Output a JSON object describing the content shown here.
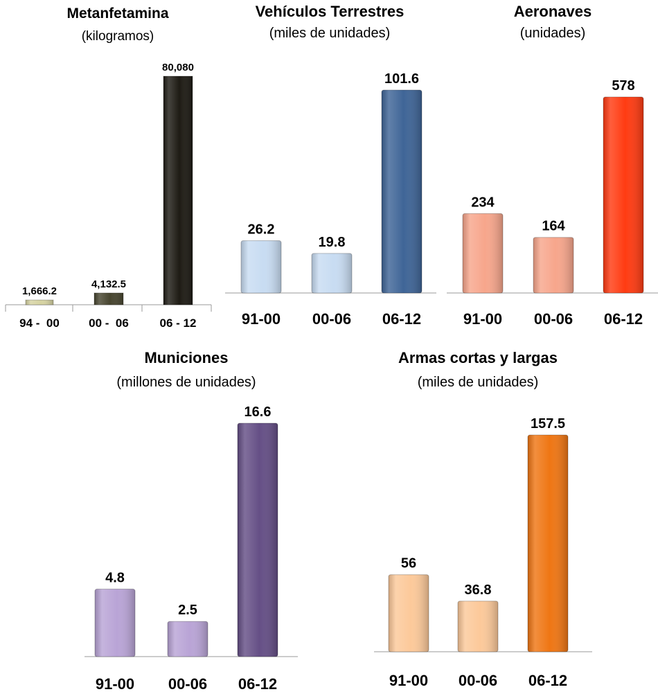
{
  "chart_data": [
    {
      "type": "bar",
      "title": "Metanfetamina",
      "subtitle": "(kilogramos)",
      "categories": [
        "94 -  00",
        "00 -  06",
        "06 - 12"
      ],
      "values": [
        1666.2,
        4132.5,
        80080
      ],
      "value_labels": [
        "1,666.2",
        "4,132.5",
        "80,080"
      ],
      "colors": [
        "#d6d3a2",
        "#47452f",
        "#1e1b14"
      ],
      "ylim": [
        0,
        80080
      ]
    },
    {
      "type": "bar",
      "title": "Vehículos Terrestres",
      "subtitle": "(miles de unidades)",
      "categories": [
        "91-00",
        "00-06",
        "06-12"
      ],
      "values": [
        26.2,
        19.8,
        101.6
      ],
      "value_labels": [
        "26.2",
        "19.8",
        "101.6"
      ],
      "colors": [
        "#c8dcf2",
        "#c8dcf2",
        "#3f6597"
      ],
      "ylim": [
        0,
        101.6
      ]
    },
    {
      "type": "bar",
      "title": "Aeronaves",
      "subtitle": "(unidades)",
      "categories": [
        "91-00",
        "00-06",
        "06-12"
      ],
      "values": [
        234,
        164,
        578
      ],
      "value_labels": [
        "234",
        "164",
        "578"
      ],
      "colors": [
        "#f7a68c",
        "#f7a68c",
        "#ff3b12"
      ],
      "ylim": [
        0,
        578
      ]
    },
    {
      "type": "bar",
      "title": "Municiones",
      "subtitle": "(millones de unidades)",
      "categories": [
        "91-00",
        "00-06",
        "06-12"
      ],
      "values": [
        4.8,
        2.5,
        16.6
      ],
      "value_labels": [
        "4.8",
        "2.5",
        "16.6"
      ],
      "colors": [
        "#b9a4d6",
        "#b9a4d6",
        "#654f86"
      ],
      "ylim": [
        0,
        16.6
      ]
    },
    {
      "type": "bar",
      "title": "Armas cortas y largas",
      "subtitle": "(miles de unidades)",
      "categories": [
        "91-00",
        "00-06",
        "06-12"
      ],
      "values": [
        56,
        36.8,
        157.5
      ],
      "value_labels": [
        "56",
        "36.8",
        "157.5"
      ],
      "colors": [
        "#fcc99a",
        "#fcc99a",
        "#ef7614"
      ],
      "ylim": [
        0,
        157.5
      ]
    }
  ]
}
